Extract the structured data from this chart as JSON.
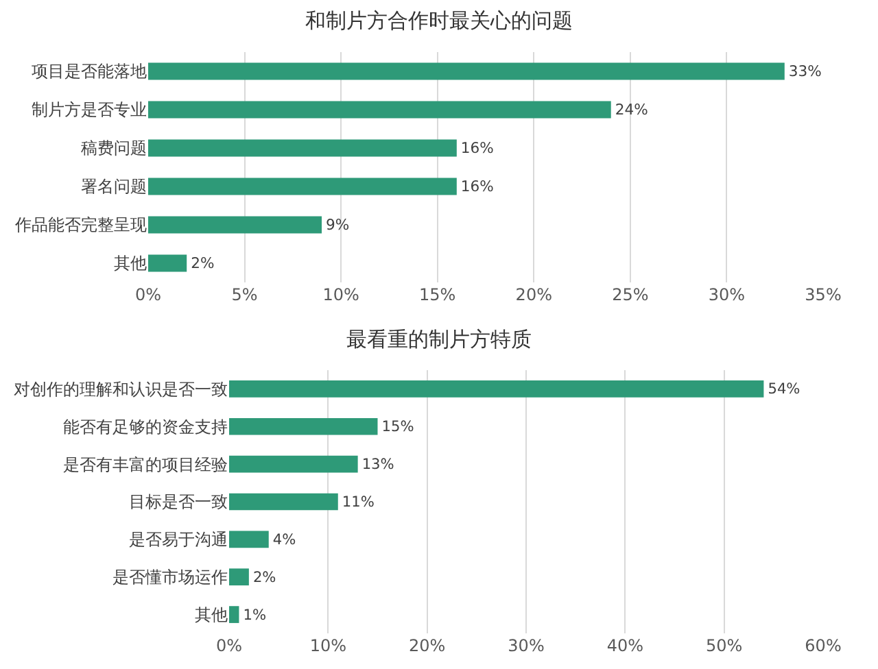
{
  "chart_data": [
    {
      "type": "bar",
      "orientation": "horizontal",
      "title": "和制片方合作时最关心的问题",
      "categories": [
        "项目是否能落地",
        "制片方是否专业",
        "稿费问题",
        "署名问题",
        "作品能否完整呈现",
        "其他"
      ],
      "values": [
        33,
        24,
        16,
        16,
        9,
        2
      ],
      "value_labels": [
        "33%",
        "24%",
        "16%",
        "16%",
        "9%",
        "2%"
      ],
      "color": "#2e9a78",
      "xlim": [
        0,
        35
      ],
      "xticks": [
        {
          "value": 0,
          "label": "0%"
        },
        {
          "value": 5,
          "label": "5%"
        },
        {
          "value": 10,
          "label": "10%"
        },
        {
          "value": 15,
          "label": "15%"
        },
        {
          "value": 20,
          "label": "20%"
        },
        {
          "value": 25,
          "label": "25%"
        },
        {
          "value": 30,
          "label": "30%"
        },
        {
          "value": 35,
          "label": "35%"
        }
      ],
      "grid": "x"
    },
    {
      "type": "bar",
      "orientation": "horizontal",
      "title": "最看重的制片方特质",
      "categories": [
        "对创作的理解和认识是否一致",
        "能否有足够的资金支持",
        "是否有丰富的项目经验",
        "目标是否一致",
        "是否易于沟通",
        "是否懂市场运作",
        "其他"
      ],
      "values": [
        54,
        15,
        13,
        11,
        4,
        2,
        1
      ],
      "value_labels": [
        "54%",
        "15%",
        "13%",
        "11%",
        "4%",
        "2%",
        "1%"
      ],
      "color": "#2e9a78",
      "xlim": [
        0,
        60
      ],
      "xticks": [
        {
          "value": 0,
          "label": "0%"
        },
        {
          "value": 10,
          "label": "10%"
        },
        {
          "value": 20,
          "label": "20%"
        },
        {
          "value": 30,
          "label": "30%"
        },
        {
          "value": 40,
          "label": "40%"
        },
        {
          "value": 50,
          "label": "50%"
        },
        {
          "value": 60,
          "label": "60%"
        }
      ],
      "grid": "x"
    }
  ]
}
